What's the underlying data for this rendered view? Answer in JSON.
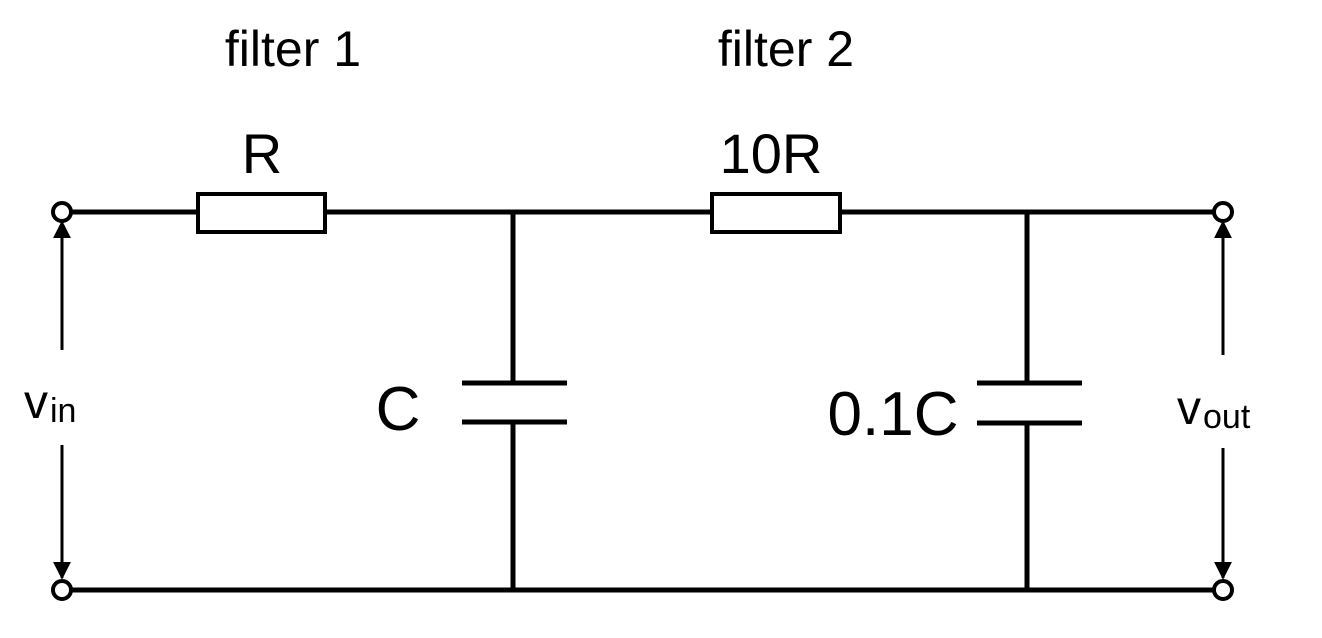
{
  "labels": {
    "filter1": "filter 1",
    "filter2": "filter 2",
    "r1": "R",
    "r2": "10R",
    "c1": "C",
    "c2": "0.1C",
    "vin_main": "v",
    "vin_sub": "in",
    "vout_main": "v",
    "vout_sub": "out"
  }
}
